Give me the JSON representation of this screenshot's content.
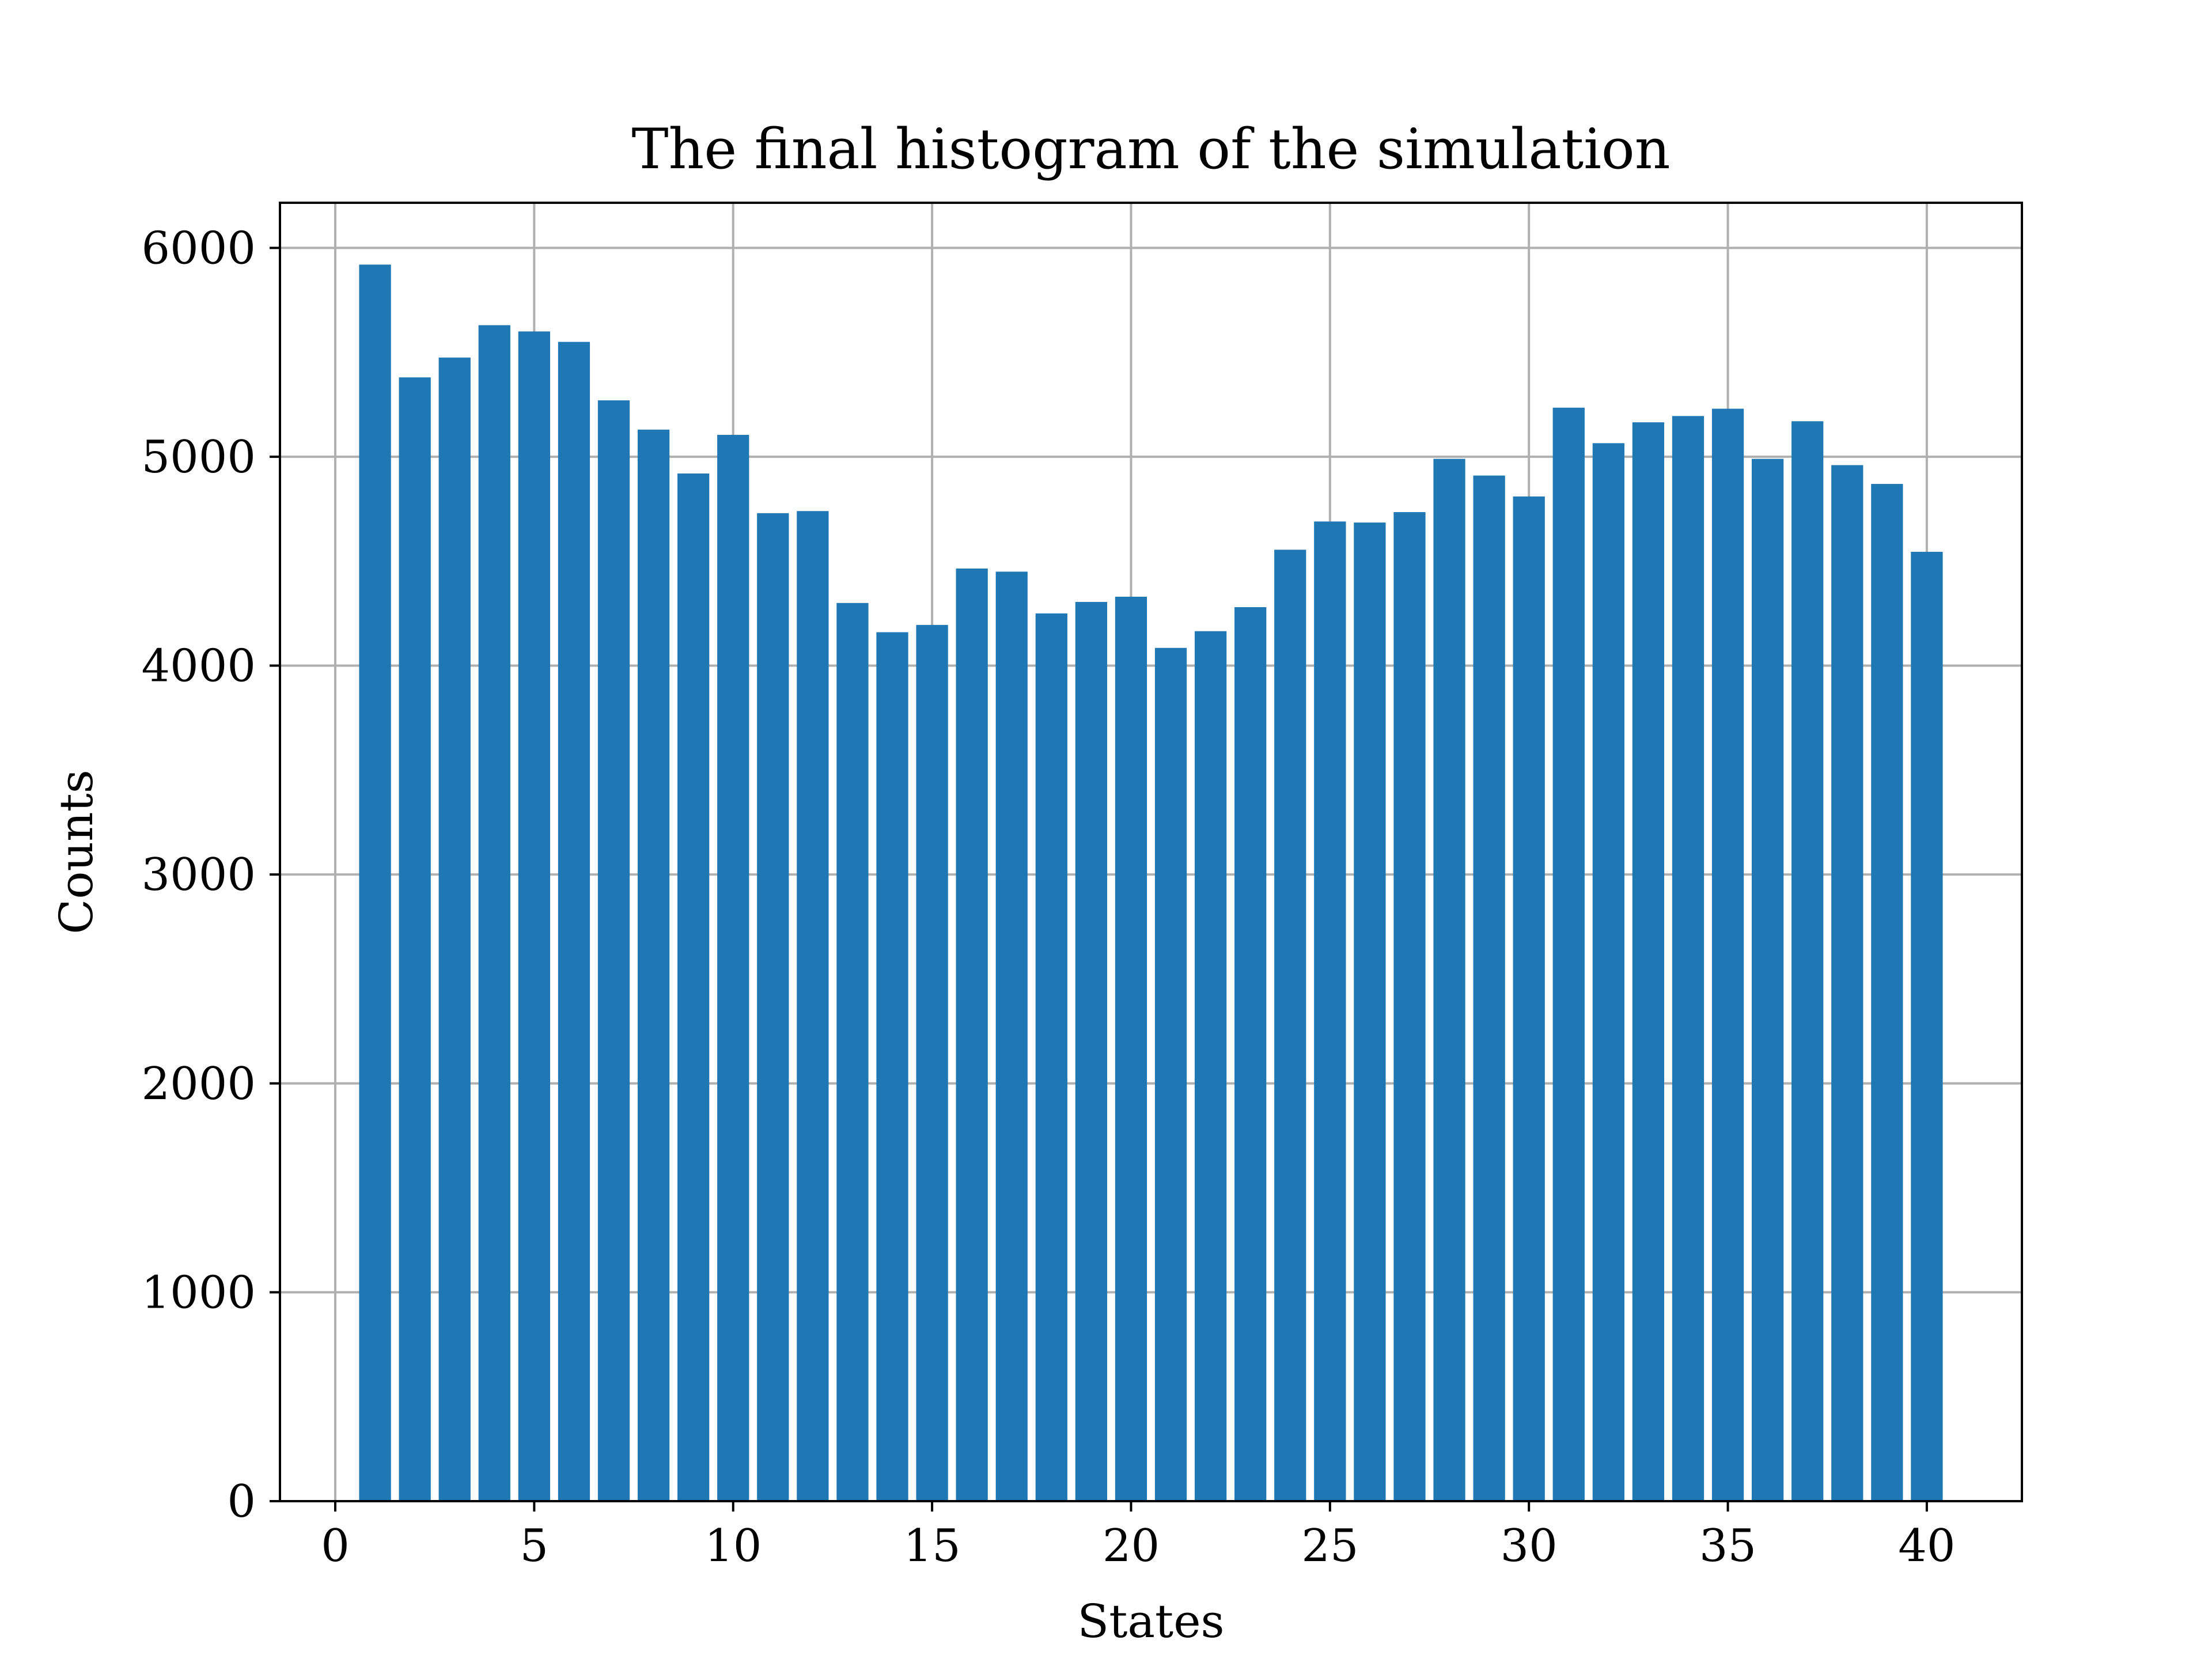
{
  "chart_data": {
    "type": "bar",
    "title": "The final histogram of the simulation",
    "xlabel": "States",
    "ylabel": "Counts",
    "x": [
      1,
      2,
      3,
      4,
      5,
      6,
      7,
      8,
      9,
      10,
      11,
      12,
      13,
      14,
      15,
      16,
      17,
      18,
      19,
      20,
      21,
      22,
      23,
      24,
      25,
      26,
      27,
      28,
      29,
      30,
      31,
      32,
      33,
      34,
      35,
      36,
      37,
      38,
      39,
      40
    ],
    "values": [
      5920,
      5380,
      5475,
      5630,
      5600,
      5550,
      5270,
      5130,
      4920,
      5105,
      4730,
      4740,
      4300,
      4160,
      4195,
      4465,
      4450,
      4250,
      4305,
      4330,
      4085,
      4165,
      4280,
      4555,
      4690,
      4685,
      4735,
      4990,
      4910,
      4810,
      5235,
      5065,
      5165,
      5195,
      5230,
      4990,
      5170,
      4960,
      4870,
      4545
    ],
    "xlim": [
      -1.39,
      42.39
    ],
    "ylim": [
      0,
      6216
    ],
    "xticks": [
      0,
      5,
      10,
      15,
      20,
      25,
      30,
      35,
      40
    ],
    "xtick_labels": [
      "0",
      "5",
      "10",
      "15",
      "20",
      "25",
      "30",
      "35",
      "40"
    ],
    "yticks": [
      0,
      1000,
      2000,
      3000,
      4000,
      5000,
      6000
    ],
    "ytick_labels": [
      "0",
      "1000",
      "2000",
      "3000",
      "4000",
      "5000",
      "6000"
    ],
    "bar_width": 0.8,
    "grid": true,
    "colors": {
      "bar": "#1f77b4",
      "grid": "#b0b0b0",
      "axis": "#000000"
    }
  }
}
